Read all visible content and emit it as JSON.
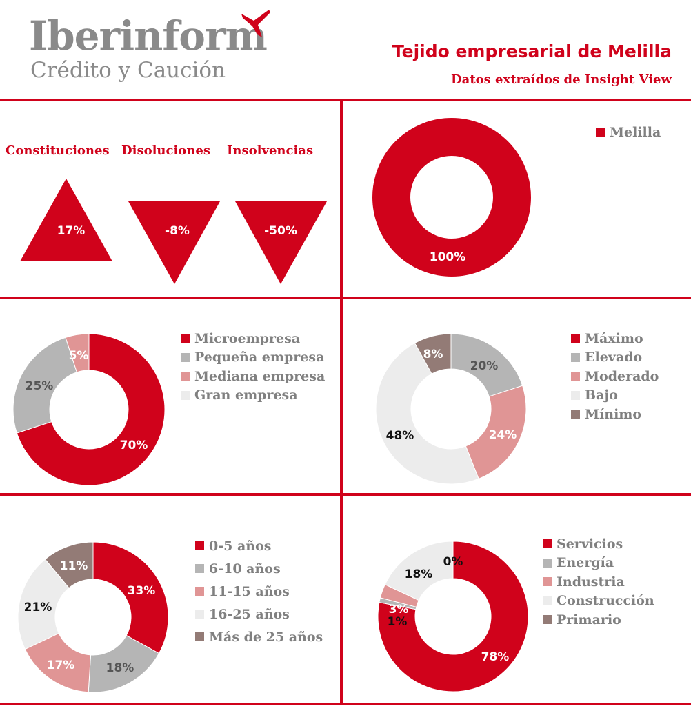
{
  "logo": {
    "name": "Iberinform",
    "sub": "Crédito y Caución"
  },
  "header": {
    "title": "Tejido empresarial de Melilla",
    "subtitle": "Datos extraídos de Insight View"
  },
  "colors": {
    "accent": "#d0021b",
    "red": "#d0021b",
    "gray": "#b5b5b5",
    "pink": "#e09595",
    "light": "#ececec",
    "brown": "#937b76"
  },
  "indicators": [
    {
      "label": "Constituciones",
      "value": "17%",
      "direction": "up"
    },
    {
      "label": "Disoluciones",
      "value": "-8%",
      "direction": "down"
    },
    {
      "label": "Insolvencias",
      "value": "-50%",
      "direction": "down"
    }
  ],
  "chart_data": [
    {
      "type": "donut",
      "series": [
        {
          "name": "Melilla",
          "values": [
            100
          ]
        }
      ],
      "categories": [
        "Melilla"
      ],
      "values": [
        100
      ],
      "labels": [
        "100%"
      ],
      "colors": [
        "#d0021b"
      ],
      "legend": "top-right"
    },
    {
      "type": "donut",
      "categories": [
        "Microempresa",
        "Pequeña empresa",
        "Mediana empresa",
        "Gran empresa"
      ],
      "values": [
        70,
        25,
        5,
        0
      ],
      "labels": [
        "70%",
        "25%",
        "5%",
        ""
      ],
      "colors": [
        "#d0021b",
        "#b5b5b5",
        "#e09595",
        "#ececec"
      ],
      "legend": "right"
    },
    {
      "type": "donut",
      "categories": [
        "Máximo",
        "Elevado",
        "Moderado",
        "Bajo",
        "Mínimo"
      ],
      "values": [
        0,
        20,
        24,
        48,
        8
      ],
      "labels": [
        "",
        "20%",
        "24%",
        "48%",
        "8%"
      ],
      "colors": [
        "#d0021b",
        "#b5b5b5",
        "#e09595",
        "#ececec",
        "#937b76"
      ],
      "legend": "right"
    },
    {
      "type": "donut",
      "categories": [
        "0-5 años",
        "6-10 años",
        "11-15 años",
        "16-25 años",
        "Más de 25 años"
      ],
      "values": [
        33,
        18,
        17,
        21,
        11
      ],
      "labels": [
        "33%",
        "18%",
        "17%",
        "21%",
        "11%"
      ],
      "colors": [
        "#d0021b",
        "#b5b5b5",
        "#e09595",
        "#ececec",
        "#937b76"
      ],
      "legend": "right"
    },
    {
      "type": "donut",
      "categories": [
        "Servicios",
        "Energía",
        "Industria",
        "Construcción",
        "Primario"
      ],
      "values": [
        78,
        1,
        3,
        18,
        0
      ],
      "labels": [
        "78%",
        "1%",
        "3%",
        "18%",
        "0%"
      ],
      "colors": [
        "#d0021b",
        "#b5b5b5",
        "#e09595",
        "#ececec",
        "#937b76"
      ],
      "legend": "right"
    }
  ]
}
